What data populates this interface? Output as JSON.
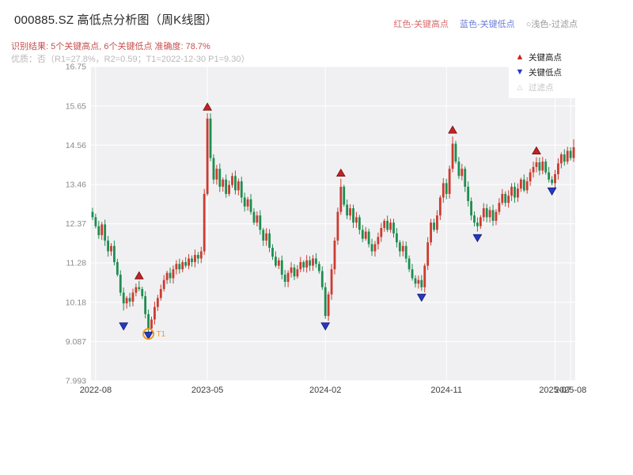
{
  "header": {
    "title": "000885.SZ 高低点分析图（周K线图）",
    "legend_inline": {
      "high": "红色-关键高点",
      "low": "蓝色-关键低点",
      "filter": "○浅色-过滤点"
    },
    "result_line": "识别结果: 5个关键高点, 6个关键低点  准确度: 78.7%",
    "quality_line": "优质：否（R1=27.8%，R2=0.59；T1=2022-12-30 P1=9.30）"
  },
  "legend_box": {
    "items": [
      {
        "label": "关键高点",
        "icon": "▲",
        "type": "key-high"
      },
      {
        "label": "关键低点",
        "icon": "▼",
        "type": "key-low"
      },
      {
        "label": "过滤点",
        "icon": "△",
        "type": "filter"
      }
    ]
  },
  "colors": {
    "up": "#cc3b30",
    "down": "#1e8e50",
    "key_high": "#c62222",
    "key_high_edge": "#6e0e0e",
    "key_low": "#2438c8",
    "key_low_edge": "#101a70",
    "t1": "#f09a1e",
    "plot_bg": "#f0f0f2",
    "grid": "#ffffff",
    "ytick": "#8a8a8a",
    "xtick": "#3c3c3c"
  },
  "chart_data": {
    "type": "candlestick",
    "symbol": "000885.SZ",
    "period": "weekly",
    "title": "000885.SZ 高低点分析图（周K线图）",
    "y_range": [
      7.993,
      16.75
    ],
    "y_ticks": [
      "16.75",
      "15.65",
      "14.56",
      "13.46",
      "12.37",
      "11.28",
      "10.18",
      "9.087",
      "7.993"
    ],
    "x_ticks": [
      {
        "i": 1,
        "label": "2022-08"
      },
      {
        "i": 37,
        "label": "2023-05"
      },
      {
        "i": 75,
        "label": "2024-02"
      },
      {
        "i": 114,
        "label": "2024-11"
      },
      {
        "i": 149,
        "label": "2025-07"
      },
      {
        "i": 154,
        "label": "2025-08"
      }
    ],
    "first_open": 12.7,
    "closes": [
      12.55,
      12.3,
      12.05,
      12.35,
      11.9,
      11.6,
      11.75,
      11.3,
      10.95,
      10.45,
      10.15,
      10.3,
      10.2,
      10.45,
      10.6,
      10.55,
      10.35,
      9.85,
      9.45,
      9.7,
      10.05,
      10.3,
      10.55,
      10.8,
      11.0,
      10.85,
      11.1,
      11.25,
      11.1,
      11.3,
      11.2,
      11.4,
      11.3,
      11.5,
      11.4,
      11.6,
      13.2,
      15.3,
      14.2,
      13.6,
      13.9,
      13.4,
      13.6,
      13.2,
      13.45,
      13.7,
      13.3,
      13.55,
      13.1,
      12.85,
      13.05,
      12.7,
      12.4,
      12.6,
      12.2,
      11.9,
      12.1,
      11.7,
      11.45,
      11.2,
      11.35,
      10.95,
      10.75,
      11.0,
      11.15,
      10.9,
      11.1,
      11.3,
      11.15,
      11.35,
      11.2,
      11.4,
      11.25,
      11.05,
      10.6,
      9.8,
      10.4,
      11.1,
      11.9,
      12.7,
      13.4,
      12.9,
      12.6,
      12.8,
      12.4,
      12.55,
      12.2,
      11.95,
      12.15,
      11.8,
      11.6,
      11.8,
      12.0,
      12.25,
      12.45,
      12.2,
      12.4,
      12.1,
      11.85,
      11.6,
      11.75,
      11.4,
      11.1,
      10.85,
      10.7,
      10.8,
      10.6,
      11.2,
      11.85,
      12.4,
      12.2,
      12.6,
      13.1,
      13.5,
      13.2,
      13.9,
      14.6,
      14.1,
      13.7,
      13.9,
      13.4,
      13.0,
      12.6,
      12.4,
      12.3,
      12.55,
      12.8,
      12.55,
      12.75,
      12.45,
      12.7,
      12.95,
      13.2,
      12.95,
      13.15,
      13.4,
      13.1,
      13.35,
      13.6,
      13.3,
      13.55,
      13.8,
      13.95,
      14.08,
      13.85,
      14.1,
      13.8,
      13.6,
      13.5,
      13.75,
      14.05,
      14.3,
      14.1,
      14.4,
      14.2,
      14.5
    ],
    "wick_overrides": {
      "10": {
        "low": 9.95
      },
      "15": {
        "high": 10.78
      },
      "18": {
        "low": 9.28
      },
      "37": {
        "high": 15.45
      },
      "75": {
        "low": 9.72
      },
      "80": {
        "high": 13.62
      },
      "106": {
        "low": 10.5
      },
      "116": {
        "high": 14.8
      },
      "124": {
        "low": 12.15
      },
      "143": {
        "high": 14.22
      },
      "148": {
        "low": 13.44
      },
      "155": {
        "high": 14.72
      }
    },
    "key_highs": [
      {
        "i": 15,
        "price": 10.92
      },
      {
        "i": 37,
        "price": 15.62
      },
      {
        "i": 80,
        "price": 13.78
      },
      {
        "i": 116,
        "price": 14.98
      },
      {
        "i": 143,
        "price": 14.4
      }
    ],
    "key_lows": [
      {
        "i": 10,
        "price": 9.52
      },
      {
        "i": 18,
        "price": 9.26
      },
      {
        "i": 75,
        "price": 9.52
      },
      {
        "i": 106,
        "price": 10.32
      },
      {
        "i": 124,
        "price": 11.98
      },
      {
        "i": 148,
        "price": 13.28
      }
    ],
    "t1": {
      "i": 18,
      "price": 9.3,
      "label": "T1"
    }
  }
}
